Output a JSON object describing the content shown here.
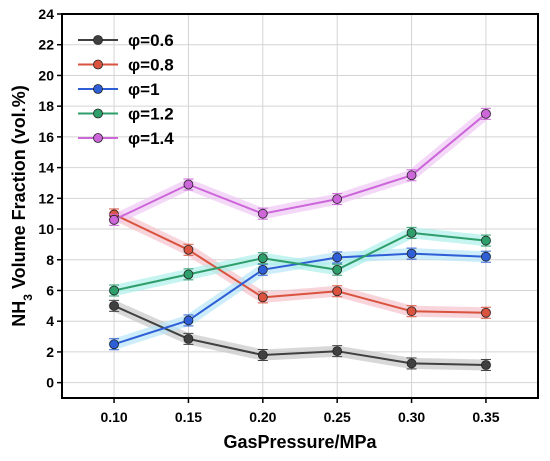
{
  "chart_data": {
    "type": "line",
    "xlabel": "GasPressure/MPa",
    "ylabel_main": "NH",
    "ylabel_sub": "3",
    "ylabel_rest": " Volume Fraction (vol.%)",
    "xlim": [
      0.065,
      0.385
    ],
    "ylim": [
      -1,
      24
    ],
    "x": [
      0.1,
      0.15,
      0.2,
      0.25,
      0.3,
      0.35
    ],
    "xticks": [
      "0.10",
      "0.15",
      "0.20",
      "0.25",
      "0.30",
      "0.35"
    ],
    "yticks": [
      0,
      2,
      4,
      6,
      8,
      10,
      12,
      14,
      16,
      18,
      20,
      22,
      24
    ],
    "grid": true,
    "legend_position": "top-left",
    "series": [
      {
        "name": "φ=0.6",
        "color": "#404040",
        "band": "#c8c8c8",
        "values": [
          5.0,
          2.85,
          1.8,
          2.05,
          1.25,
          1.15
        ]
      },
      {
        "name": "φ=0.8",
        "color": "#d9533f",
        "band": "#f5c2cc",
        "values": [
          10.95,
          8.65,
          5.55,
          5.95,
          4.65,
          4.55
        ]
      },
      {
        "name": "φ=1",
        "color": "#2f5fd6",
        "band": "#b7e6f7",
        "values": [
          2.5,
          4.05,
          7.35,
          8.15,
          8.4,
          8.2
        ]
      },
      {
        "name": "φ=1.2",
        "color": "#2e9e6b",
        "band": "#aef0ea",
        "values": [
          6.0,
          7.05,
          8.1,
          7.35,
          9.75,
          9.25
        ]
      },
      {
        "name": "φ=1.4",
        "color": "#cc66d9",
        "band": "#f0c8f5",
        "values": [
          10.6,
          12.9,
          11.0,
          11.95,
          13.5,
          17.5
        ]
      }
    ]
  }
}
